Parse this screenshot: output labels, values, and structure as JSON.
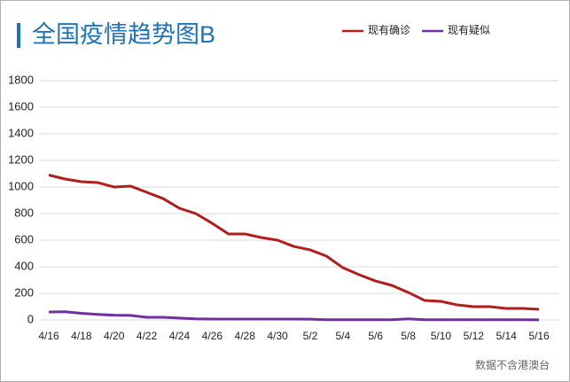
{
  "chart_data": {
    "type": "line",
    "title": "全国疫情趋势图B",
    "source": "数据不含港澳台",
    "categories": [
      "4/16",
      null,
      "4/18",
      null,
      "4/20",
      null,
      "4/22",
      null,
      "4/24",
      null,
      "4/26",
      null,
      "4/28",
      null,
      "4/30",
      null,
      "5/2",
      null,
      "5/4",
      null,
      "5/6",
      null,
      "5/8",
      null,
      "5/10",
      null,
      "5/12",
      null,
      "5/14",
      null,
      "5/16"
    ],
    "series": [
      {
        "name": "现有确诊",
        "color": "#b01e1e",
        "values": [
          1090,
          1060,
          1040,
          1033,
          1000,
          1007,
          960,
          913,
          840,
          800,
          727,
          647,
          647,
          620,
          600,
          553,
          527,
          480,
          393,
          340,
          293,
          260,
          207,
          147,
          140,
          113,
          100,
          100,
          87,
          87,
          80
        ]
      },
      {
        "name": "现有疑似",
        "color": "#7030a0",
        "values": [
          60,
          62,
          50,
          42,
          36,
          34,
          20,
          20,
          14,
          8,
          7,
          7,
          7,
          7,
          7,
          7,
          6,
          2,
          2,
          2,
          2,
          2,
          8,
          2,
          2,
          2,
          2,
          2,
          2,
          2,
          1
        ]
      }
    ],
    "ylim": [
      0,
      1800
    ],
    "yticks": [
      0,
      200,
      400,
      600,
      800,
      1000,
      1200,
      1400,
      1600,
      1800
    ],
    "grid": true,
    "legend": "top-right"
  }
}
